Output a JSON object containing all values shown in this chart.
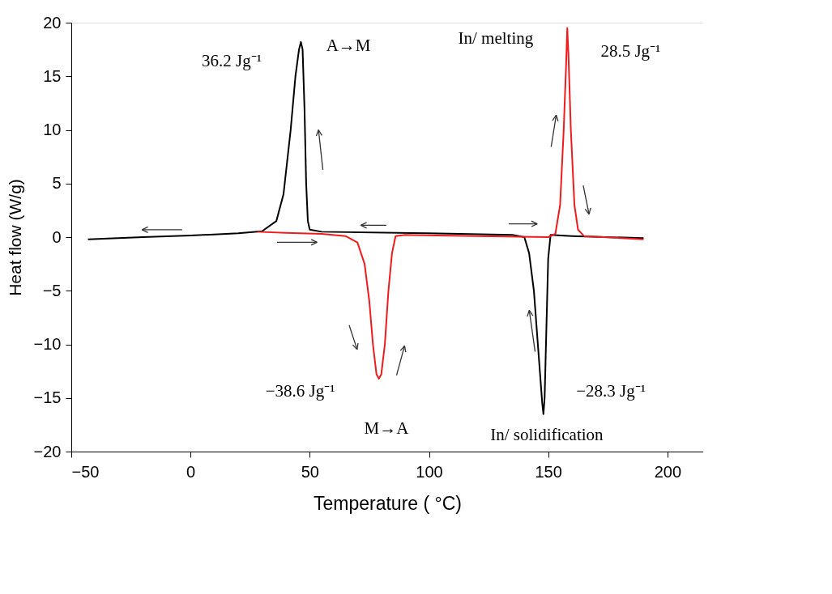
{
  "chart_data": {
    "type": "line",
    "xlabel": "Temperature ( °C)",
    "ylabel": "Heat flow (W/g)",
    "xlim": [
      -50,
      215
    ],
    "xticks": [
      -50,
      0,
      50,
      100,
      150,
      200
    ],
    "ylim": [
      -20,
      20
    ],
    "yticks": [
      -20,
      -15,
      -10,
      -5,
      0,
      5,
      10,
      15,
      20
    ],
    "grid": false,
    "marker": "none",
    "line_style": "solid",
    "series": [
      {
        "color": "#000000",
        "x": [
          -43,
          -20,
          0,
          20,
          30,
          36,
          39,
          42,
          44,
          45.5,
          46.3,
          47,
          47.8,
          48.5,
          49.2,
          50,
          55,
          100,
          135,
          140,
          142,
          144,
          146,
          147.5,
          148,
          148.5,
          149.3,
          150,
          151,
          160,
          190
        ],
        "values": [
          -0.2,
          0,
          0.15,
          0.35,
          0.55,
          1.5,
          4,
          10,
          15,
          17.5,
          18.2,
          17.5,
          12,
          5,
          1.5,
          0.7,
          0.5,
          0.35,
          0.2,
          0,
          -1.5,
          -5,
          -11,
          -15.5,
          -16.5,
          -15,
          -8,
          -2,
          0.2,
          0.1,
          -0.1
        ]
      },
      {
        "color": "#ee1c1c",
        "x": [
          28,
          40,
          55,
          65,
          70,
          73,
          75,
          76.5,
          78,
          79,
          80,
          81.5,
          83,
          84.5,
          86,
          90,
          120,
          150,
          153,
          155,
          156.5,
          157.5,
          158,
          158.5,
          159.5,
          161,
          162.5,
          165,
          190
        ],
        "values": [
          0.5,
          0.4,
          0.3,
          0.1,
          -0.5,
          -2.5,
          -6,
          -10,
          -12.8,
          -13.2,
          -12.8,
          -10,
          -5,
          -1.5,
          0.1,
          0.2,
          0.1,
          0,
          0.3,
          3,
          10,
          16,
          19.5,
          17,
          10,
          3,
          0.7,
          0.1,
          -0.2
        ]
      }
    ],
    "annotations": [
      "36.2 Jg⁻¹",
      "A→M",
      "In/ melting",
      "28.5 Jg⁻¹",
      "−38.6 Jg⁻¹",
      "M→A",
      "−28.3 Jg⁻¹",
      "In/ solidification"
    ]
  }
}
